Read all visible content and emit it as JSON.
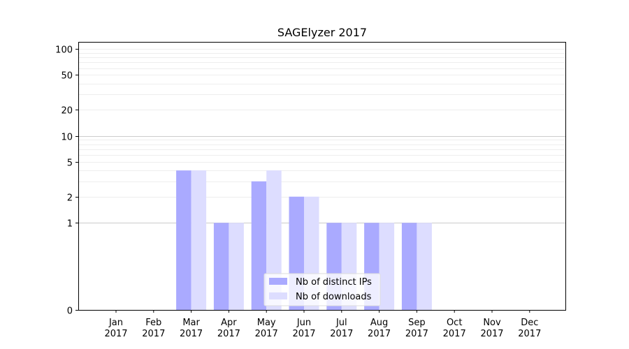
{
  "chart_data": {
    "type": "bar",
    "title": "SAGElyzer 2017",
    "xlabel": "",
    "ylabel": "",
    "y_scale": "symlog",
    "ylim": [
      0,
      120
    ],
    "y_ticks": [
      0,
      1,
      2,
      5,
      10,
      20,
      50,
      100
    ],
    "grid": "horizontal",
    "legend_position": "bottom-center",
    "categories": [
      [
        "Jan",
        "2017"
      ],
      [
        "Feb",
        "2017"
      ],
      [
        "Mar",
        "2017"
      ],
      [
        "Apr",
        "2017"
      ],
      [
        "May",
        "2017"
      ],
      [
        "Jun",
        "2017"
      ],
      [
        "Jul",
        "2017"
      ],
      [
        "Aug",
        "2017"
      ],
      [
        "Sep",
        "2017"
      ],
      [
        "Oct",
        "2017"
      ],
      [
        "Nov",
        "2017"
      ],
      [
        "Dec",
        "2017"
      ]
    ],
    "series": [
      {
        "name": "Nb of distinct IPs",
        "color": "#aaaaff",
        "values": [
          0,
          0,
          4,
          1,
          3,
          2,
          1,
          1,
          1,
          0,
          0,
          0
        ]
      },
      {
        "name": "Nb of downloads",
        "color": "#ddddff",
        "values": [
          0,
          0,
          4,
          1,
          4,
          2,
          1,
          1,
          1,
          0,
          0,
          0
        ]
      }
    ]
  }
}
